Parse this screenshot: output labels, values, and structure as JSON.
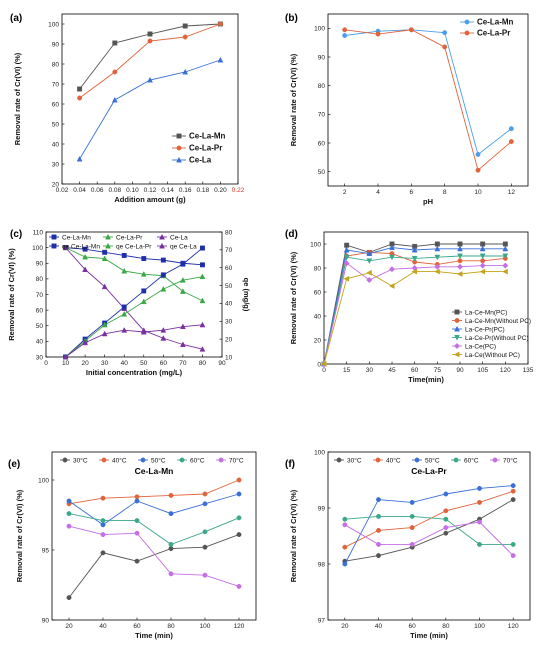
{
  "chart_data": [
    {
      "panel": "(a)",
      "type": "line",
      "xlabel": "Addition amount (g)",
      "ylabel": "Removal rate of Cr(VI) (%)",
      "xlim": [
        0.02,
        0.22
      ],
      "ylim": [
        20,
        105
      ],
      "xticks": [
        0.02,
        0.04,
        0.06,
        0.08,
        0.1,
        0.12,
        0.14,
        0.16,
        0.18,
        0.2,
        0.22
      ],
      "xtick_labels": [
        "0.02",
        "0.04",
        "0.06",
        "0.08",
        "0.10",
        "0.12",
        "0.14",
        "0.16",
        "0.18",
        "0.20",
        "0.22"
      ],
      "yticks": [
        20,
        30,
        40,
        50,
        60,
        70,
        80,
        90,
        100
      ],
      "legend_position": "bottom-right",
      "legend_style": "large",
      "x": [
        0.04,
        0.08,
        0.12,
        0.16,
        0.2
      ],
      "series": [
        {
          "name": "Ce-La-Mn",
          "color": "#555555",
          "marker": "square",
          "values": [
            67.5,
            90.5,
            95.0,
            99.0,
            100.0
          ]
        },
        {
          "name": "Ce-La-Pr",
          "color": "#e0643b",
          "marker": "circle",
          "values": [
            63.0,
            76.0,
            91.5,
            93.5,
            100.0
          ]
        },
        {
          "name": "Ce-La",
          "color": "#3a6fd8",
          "marker": "triangle",
          "values": [
            32.5,
            62.0,
            72.0,
            76.0,
            82.0
          ]
        }
      ]
    },
    {
      "panel": "(b)",
      "type": "line",
      "xlabel": "pH",
      "ylabel": "Removal rate of Cr(VI) (%)",
      "xlim": [
        1,
        13
      ],
      "ylim": [
        45,
        105
      ],
      "xticks": [
        2,
        4,
        6,
        8,
        10,
        12
      ],
      "xtick_labels": [
        "2",
        "4",
        "6",
        "8",
        "10",
        "12"
      ],
      "yticks": [
        50,
        60,
        70,
        80,
        90,
        100
      ],
      "legend_position": "top-right",
      "legend_style": "large",
      "x": [
        2,
        4,
        6,
        8,
        10,
        12
      ],
      "series": [
        {
          "name": "Ce-La-Mn",
          "color": "#4a9fe8",
          "marker": "circle",
          "values": [
            97.5,
            99.0,
            99.5,
            98.5,
            56.0,
            65.0
          ]
        },
        {
          "name": "Ce-La-Pr",
          "color": "#e0643b",
          "marker": "circle",
          "values": [
            99.5,
            98.0,
            99.5,
            93.5,
            50.5,
            60.5
          ]
        }
      ]
    },
    {
      "panel": "(c)",
      "type": "line",
      "xlabel": "Initial concentration (mg/L)",
      "ylabel": "Removal rate of Cr(VI) (%)",
      "y2label": "qe (mg/g)",
      "xlim": [
        0,
        90
      ],
      "ylim": [
        30,
        110
      ],
      "y2lim": [
        10,
        80
      ],
      "xticks": [
        0,
        10,
        20,
        30,
        40,
        50,
        60,
        70,
        80,
        90
      ],
      "xtick_labels": [
        "0",
        "10",
        "20",
        "30",
        "40",
        "50",
        "60",
        "70",
        "80",
        "90"
      ],
      "yticks": [
        30,
        40,
        50,
        60,
        70,
        80,
        90,
        100,
        110
      ],
      "y2ticks": [
        10,
        20,
        30,
        40,
        50,
        60,
        70,
        80
      ],
      "legend_position": "top",
      "x": [
        10,
        20,
        30,
        40,
        50,
        60,
        70,
        80
      ],
      "series": [
        {
          "name": "Ce-La-Mn",
          "color": "#1f2fa8",
          "marker": "square",
          "axis": "left",
          "values": [
            100,
            99,
            97,
            95,
            93,
            92,
            90,
            89
          ]
        },
        {
          "name": "Ce-La-Pr",
          "color": "#3aa845",
          "marker": "triangle",
          "axis": "left",
          "values": [
            100,
            94,
            93,
            85,
            83,
            82,
            72,
            66
          ]
        },
        {
          "name": "Ce-La",
          "color": "#7a2fa0",
          "marker": "triangle",
          "axis": "left",
          "values": [
            100,
            86,
            75,
            61,
            47,
            42,
            38,
            35
          ]
        },
        {
          "name": "qe Ce-La-Mn",
          "color": "#1f2fa8",
          "marker": "square",
          "axis": "right",
          "values": [
            10,
            20,
            29,
            38,
            47,
            56,
            62,
            71
          ]
        },
        {
          "name": "qe Ce-La-Pr",
          "color": "#3aa845",
          "marker": "triangle",
          "axis": "right",
          "values": [
            10,
            19,
            28,
            34,
            41,
            48,
            53,
            55
          ]
        },
        {
          "name": "qe Ce-La",
          "color": "#7a2fa0",
          "marker": "triangle",
          "axis": "right",
          "values": [
            10,
            18,
            23,
            25,
            24,
            25,
            27,
            28
          ]
        }
      ]
    },
    {
      "panel": "(d)",
      "type": "line",
      "xlabel": "Time(min)",
      "ylabel": "Removal rate of Cr(VI) (%)",
      "xlim": [
        0,
        135
      ],
      "ylim": [
        0,
        110
      ],
      "xticks": [
        0,
        15,
        30,
        45,
        60,
        75,
        90,
        105,
        120,
        135
      ],
      "xtick_labels": [
        "0",
        "15",
        "30",
        "45",
        "60",
        "75",
        "90",
        "105",
        "120",
        "135"
      ],
      "yticks": [
        0,
        20,
        40,
        60,
        80,
        100
      ],
      "legend_position": "bottom-right",
      "x": [
        0,
        15,
        30,
        45,
        60,
        75,
        90,
        105,
        120
      ],
      "series": [
        {
          "name": "La-Ce-Mn(PC)",
          "color": "#555555",
          "marker": "square",
          "values": [
            0,
            99,
            93,
            100,
            98,
            100,
            100,
            100,
            100
          ]
        },
        {
          "name": "La-Ce-Mn(Without PC)",
          "color": "#e0643b",
          "marker": "circle",
          "values": [
            0,
            90,
            93,
            92,
            85,
            83,
            86,
            86,
            88
          ]
        },
        {
          "name": "La-Ce-Pr(PC)",
          "color": "#3a6fd8",
          "marker": "triangle",
          "values": [
            0,
            95,
            92,
            97,
            95,
            96,
            96,
            96,
            96
          ]
        },
        {
          "name": "La-Ce-Pr(Without PC)",
          "color": "#3aa88a",
          "marker": "triangle-down",
          "values": [
            0,
            89,
            86,
            89,
            88,
            89,
            90,
            90,
            90
          ]
        },
        {
          "name": "La-Ce(PC)",
          "color": "#c56ee6",
          "marker": "diamond",
          "values": [
            0,
            84,
            70,
            79,
            80,
            81,
            81,
            82,
            82
          ]
        },
        {
          "name": "La-Ce(Without PC)",
          "color": "#c4a31c",
          "marker": "triangle-left",
          "values": [
            0,
            71,
            76,
            65,
            77,
            77,
            75,
            77,
            77
          ]
        }
      ]
    },
    {
      "panel": "(e)",
      "type": "line",
      "title": "Ce-La-Mn",
      "xlabel": "Time (min)",
      "ylabel": "Removal rate of Cr(VI) (%)",
      "xlim": [
        10,
        130
      ],
      "ylim": [
        90,
        102
      ],
      "xticks": [
        20,
        40,
        60,
        80,
        100,
        120
      ],
      "xtick_labels": [
        "20",
        "40",
        "60",
        "80",
        "100",
        "120"
      ],
      "yticks": [
        90,
        95,
        100
      ],
      "legend_position": "top",
      "x": [
        20,
        40,
        60,
        80,
        100,
        120
      ],
      "series": [
        {
          "name": "30°C",
          "color": "#555555",
          "marker": "circle",
          "values": [
            91.6,
            94.8,
            94.2,
            95.1,
            95.2,
            96.1
          ]
        },
        {
          "name": "40°C",
          "color": "#e0643b",
          "marker": "circle",
          "values": [
            98.3,
            98.7,
            98.8,
            98.9,
            99.0,
            100.0
          ]
        },
        {
          "name": "50°C",
          "color": "#3a6fd8",
          "marker": "circle",
          "values": [
            98.5,
            96.8,
            98.5,
            97.6,
            98.3,
            99.0
          ]
        },
        {
          "name": "60°C",
          "color": "#3aa88a",
          "marker": "circle",
          "values": [
            97.6,
            97.1,
            97.1,
            95.4,
            96.3,
            97.3
          ]
        },
        {
          "name": "70°C",
          "color": "#c56ee6",
          "marker": "circle",
          "values": [
            96.7,
            96.1,
            96.2,
            93.3,
            93.2,
            92.4
          ]
        }
      ]
    },
    {
      "panel": "(f)",
      "type": "line",
      "title": "Ce-La-Pr",
      "xlabel": "Time (min)",
      "ylabel": "Removal rate of Cr(VI) (%)",
      "xlim": [
        10,
        130
      ],
      "ylim": [
        97,
        100
      ],
      "xticks": [
        20,
        40,
        60,
        80,
        100,
        120
      ],
      "xtick_labels": [
        "20",
        "40",
        "60",
        "80",
        "100",
        "120"
      ],
      "yticks": [
        97,
        98,
        99,
        100
      ],
      "legend_position": "top",
      "x": [
        20,
        40,
        60,
        80,
        100,
        120
      ],
      "series": [
        {
          "name": "30°C",
          "color": "#555555",
          "marker": "circle",
          "values": [
            98.05,
            98.15,
            98.3,
            98.55,
            98.8,
            99.15
          ]
        },
        {
          "name": "40°C",
          "color": "#e0643b",
          "marker": "circle",
          "values": [
            98.3,
            98.6,
            98.65,
            98.95,
            99.1,
            99.3
          ]
        },
        {
          "name": "50°C",
          "color": "#3a6fd8",
          "marker": "circle",
          "values": [
            98.0,
            99.15,
            99.1,
            99.25,
            99.35,
            99.4
          ]
        },
        {
          "name": "60°C",
          "color": "#3aa88a",
          "marker": "circle",
          "values": [
            98.8,
            98.85,
            98.85,
            98.8,
            98.35,
            98.35
          ]
        },
        {
          "name": "70°C",
          "color": "#c56ee6",
          "marker": "circle",
          "values": [
            98.7,
            98.35,
            98.35,
            98.65,
            98.75,
            98.15
          ]
        }
      ]
    }
  ]
}
